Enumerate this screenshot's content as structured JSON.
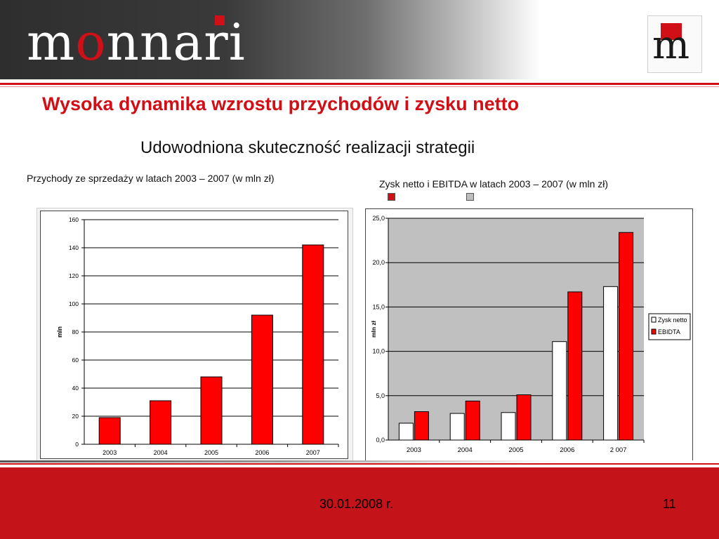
{
  "header": {
    "brand_prefix": "m",
    "brand_o": "o",
    "brand_suffix": "nnari",
    "logo_letter": "m"
  },
  "title": "Wysoka dynamika wzrostu przychodów i zysku netto",
  "subtitle": "Udowodniona skuteczność realizacji strategii",
  "left_caption": "Przychody ze sprzedaży w latach 2003 – 2007 (w mln zł)",
  "right_caption": "Zysk netto i EBITDA w latach 2003 – 2007 (w mln zł)",
  "footer": {
    "date": "30.01.2008 r.",
    "page": "11"
  },
  "colors": {
    "accent": "#d01016",
    "bar_red": "#ff0000",
    "plot_gray": "#c0c0c0"
  },
  "chart_data": [
    {
      "type": "bar",
      "categories": [
        "2003",
        "2004",
        "2005",
        "2006",
        "2007"
      ],
      "values": [
        19,
        31,
        48,
        92,
        142
      ],
      "ylabel": "mln",
      "ylim": [
        0,
        160
      ],
      "yticks": [
        "0",
        "20",
        "40",
        "60",
        "80",
        "100",
        "120",
        "140",
        "160"
      ],
      "grid": true
    },
    {
      "type": "bar",
      "categories": [
        "2003",
        "2004",
        "2005",
        "2006",
        "2 007"
      ],
      "series": [
        {
          "name": "Zysk netto",
          "values": [
            1.9,
            3.0,
            3.1,
            11.1,
            17.3
          ]
        },
        {
          "name": "EBIDTA",
          "values": [
            3.2,
            4.4,
            5.1,
            16.7,
            23.4
          ]
        }
      ],
      "ylabel": "mln zł",
      "ylim": [
        0,
        25
      ],
      "yticks": [
        "0,0",
        "5,0",
        "10,0",
        "15,0",
        "20,0",
        "25,0"
      ],
      "legend": "right",
      "grid": true
    }
  ]
}
